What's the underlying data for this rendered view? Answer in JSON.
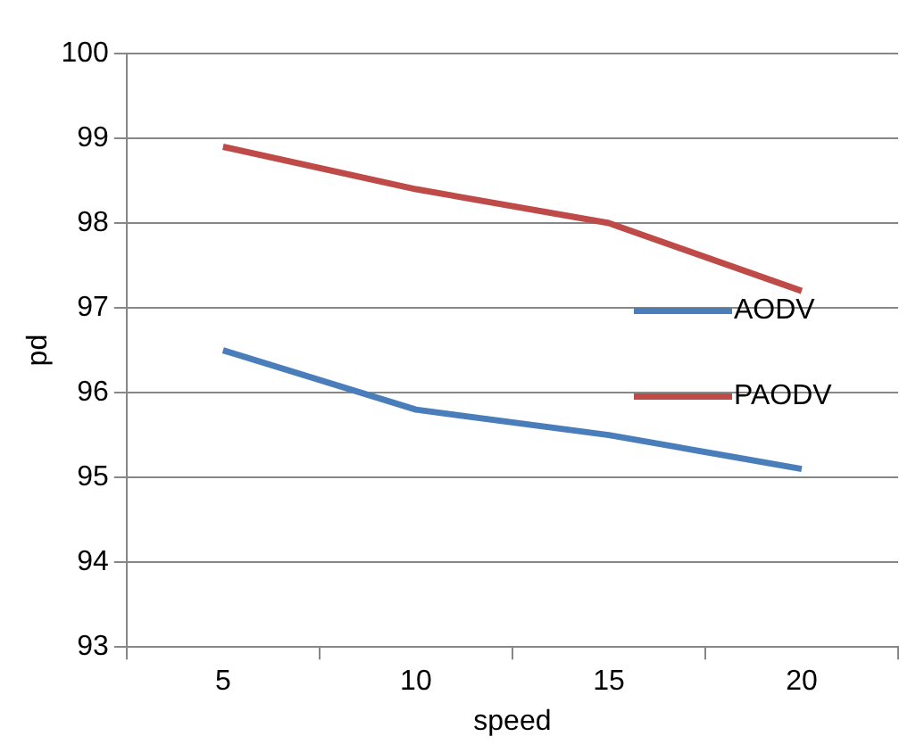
{
  "chart_data": {
    "type": "line",
    "xlabel": "speed",
    "ylabel": "pd",
    "categories": [
      "5",
      "10",
      "15",
      "20"
    ],
    "series": [
      {
        "name": "AODV",
        "color": "#4a7ebb",
        "values": [
          96.5,
          95.8,
          95.5,
          95.1
        ]
      },
      {
        "name": "PAODV",
        "color": "#be4b48",
        "values": [
          98.9,
          98.4,
          98.0,
          97.2
        ]
      }
    ],
    "ylim": [
      93,
      100
    ],
    "yticks": [
      93,
      94,
      95,
      96,
      97,
      98,
      99,
      100
    ],
    "grid": "y",
    "legend": "right",
    "marker": "none",
    "line_style": "solid"
  }
}
